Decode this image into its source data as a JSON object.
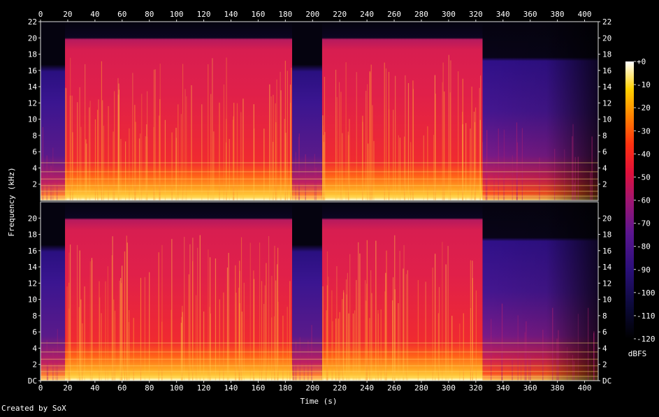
{
  "chart_data": {
    "type": "heatmap",
    "xlabel": "Time (s)",
    "ylabel": "Frequency (kHz)",
    "xlim": [
      0,
      410
    ],
    "x_ticks": [
      "0",
      "20",
      "40",
      "60",
      "80",
      "100",
      "120",
      "140",
      "160",
      "180",
      "200",
      "220",
      "240",
      "260",
      "280",
      "300",
      "320",
      "340",
      "360",
      "380",
      "400"
    ],
    "ylim_khz": [
      0,
      22
    ],
    "y_ticks": [
      "DC",
      "2",
      "4",
      "6",
      "8",
      "10",
      "12",
      "14",
      "16",
      "18",
      "20",
      "22"
    ],
    "channels": 2,
    "colorbar": {
      "unit": "dBFS",
      "ticks": [
        "+0",
        "-10",
        "-20",
        "-30",
        "-40",
        "-50",
        "-60",
        "-70",
        "-80",
        "-90",
        "-100",
        "-110",
        "-120"
      ],
      "range": [
        -120,
        0
      ]
    },
    "segments_seconds": [
      {
        "start": 0,
        "end": 18,
        "level": "quiet",
        "cutoff_khz": 16
      },
      {
        "start": 18,
        "end": 185,
        "level": "loud",
        "cutoff_khz": 20
      },
      {
        "start": 185,
        "end": 207,
        "level": "quiet",
        "cutoff_khz": 17
      },
      {
        "start": 207,
        "end": 325,
        "level": "loud",
        "cutoff_khz": 20
      },
      {
        "start": 325,
        "end": 410,
        "level": "fade",
        "cutoff_khz": 17
      }
    ]
  },
  "footer": "Created by SoX"
}
